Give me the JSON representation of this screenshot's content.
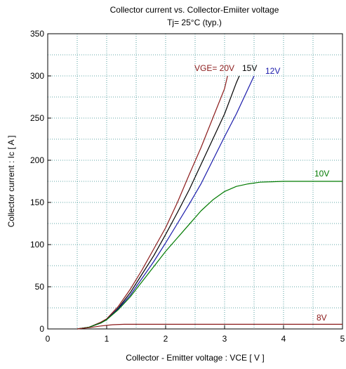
{
  "chart_data": {
    "type": "line",
    "title": "Collector current  vs.  Collector-Emiiter voltage",
    "subtitle": "Tj= 25°C  (typ.)",
    "xlabel": "Collector - Emitter voltage  :  VCE  [ V ]",
    "ylabel": "Collector current  :  Ic  [ A ]",
    "xlim": [
      0,
      5
    ],
    "ylim": [
      0,
      350
    ],
    "xticks": [
      0,
      1,
      2,
      3,
      4,
      5
    ],
    "yticks": [
      0,
      50,
      100,
      150,
      200,
      250,
      300,
      350
    ],
    "grid": true,
    "series": [
      {
        "name": "VGE= 20V",
        "color": "#8b1a1a",
        "x": [
          0.5,
          0.7,
          0.9,
          1.0,
          1.2,
          1.4,
          1.6,
          1.8,
          2.0,
          2.2,
          2.4,
          2.6,
          2.8,
          3.0,
          3.05
        ],
        "y": [
          0,
          2,
          8,
          12,
          27,
          47,
          70,
          95,
          120,
          150,
          183,
          215,
          250,
          285,
          300
        ]
      },
      {
        "name": "15V",
        "color": "#000000",
        "x": [
          0.5,
          0.7,
          0.9,
          1.0,
          1.2,
          1.4,
          1.6,
          1.8,
          2.0,
          2.2,
          2.4,
          2.6,
          2.8,
          3.0,
          3.2,
          3.25
        ],
        "y": [
          0,
          2,
          7,
          11,
          25,
          43,
          65,
          87,
          112,
          138,
          165,
          195,
          225,
          255,
          292,
          300
        ]
      },
      {
        "name": "12V",
        "color": "#1a1aaa",
        "x": [
          0.5,
          0.7,
          0.9,
          1.0,
          1.2,
          1.4,
          1.6,
          1.8,
          2.0,
          2.2,
          2.4,
          2.6,
          2.8,
          3.0,
          3.2,
          3.4,
          3.5
        ],
        "y": [
          0,
          2,
          7,
          11,
          24,
          40,
          60,
          80,
          102,
          125,
          148,
          172,
          200,
          228,
          255,
          285,
          300
        ]
      },
      {
        "name": "10V",
        "color": "#007a00",
        "x": [
          0.5,
          0.7,
          0.9,
          1.0,
          1.2,
          1.4,
          1.6,
          1.8,
          2.0,
          2.2,
          2.4,
          2.6,
          2.8,
          3.0,
          3.2,
          3.4,
          3.6,
          3.8,
          4.0,
          4.5,
          5.0
        ],
        "y": [
          0,
          2,
          7,
          11,
          23,
          38,
          56,
          74,
          92,
          108,
          124,
          140,
          153,
          163,
          169,
          172,
          174,
          174.5,
          175,
          175,
          175
        ]
      },
      {
        "name": "8V",
        "color": "#8b1a1a",
        "x": [
          0.5,
          0.7,
          0.9,
          1.1,
          1.3,
          2.0,
          3.0,
          4.0,
          5.0
        ],
        "y": [
          0,
          1.5,
          3.5,
          5,
          5.5,
          5.5,
          5.5,
          5.5,
          5.5
        ]
      }
    ],
    "annotations": [
      {
        "text": "VGE= 20V",
        "series": "VGE= 20V"
      },
      {
        "text": "15V",
        "series": "15V"
      },
      {
        "text": "12V",
        "series": "12V"
      },
      {
        "text": "10V",
        "series": "10V"
      },
      {
        "text": "8V",
        "series": "8V"
      }
    ]
  }
}
